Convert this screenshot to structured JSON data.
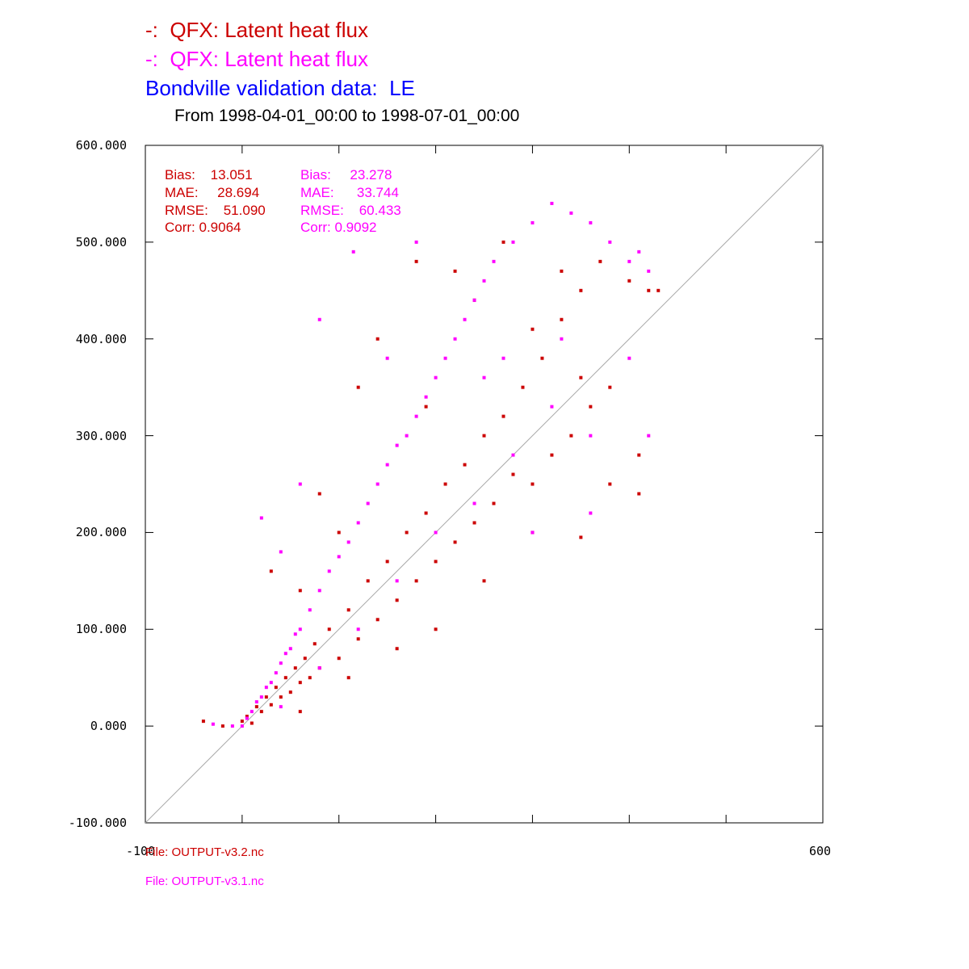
{
  "titles": {
    "line1": "-:  QFX: Latent heat flux",
    "line2": "-:  QFX: Latent heat flux",
    "line3": "Bondville validation data:  LE",
    "line4": "From 1998-04-01_00:00 to 1998-07-01_00:00"
  },
  "colors": {
    "series1": "#cc0000",
    "series2": "#ff00ff",
    "obs": "#0000ff",
    "diag": "#aaaaaa"
  },
  "files": {
    "file1": "File: OUTPUT-v3.2.nc",
    "file2": "File: OUTPUT-v3.1.nc"
  },
  "stats": {
    "s1": {
      "bias": "Bias:    13.051",
      "mae": "MAE:     28.694",
      "rmse": "RMSE:    51.090",
      "corr": "Corr: 0.9064"
    },
    "s2": {
      "bias": "Bias:     23.278",
      "mae": "MAE:      33.744",
      "rmse": "RMSE:    60.433",
      "corr": "Corr: 0.9092"
    }
  },
  "chart_data": {
    "type": "scatter",
    "title": "Bondville validation data:  LE",
    "subtitle": "From 1998-04-01_00:00 to 1998-07-01_00:00",
    "xlim": [
      -100,
      600
    ],
    "ylim": [
      -100,
      600
    ],
    "x_tick_labels": [
      "-100",
      "600"
    ],
    "y_ticks": [
      -100,
      0,
      100,
      200,
      300,
      400,
      500,
      600
    ],
    "y_tick_labels": [
      "-100.000",
      "0.000",
      "100.000",
      "200.000",
      "300.000",
      "400.000",
      "500.000",
      "600.000"
    ],
    "reference_line": "1:1 diagonal",
    "series": [
      {
        "name": "QFX: Latent heat flux (OUTPUT-v3.2.nc)",
        "color": "#cc0000",
        "points": [
          [
            0,
            5
          ],
          [
            5,
            10
          ],
          [
            10,
            3
          ],
          [
            15,
            20
          ],
          [
            20,
            15
          ],
          [
            25,
            30
          ],
          [
            30,
            22
          ],
          [
            35,
            40
          ],
          [
            40,
            30
          ],
          [
            45,
            50
          ],
          [
            50,
            35
          ],
          [
            55,
            60
          ],
          [
            60,
            45
          ],
          [
            65,
            70
          ],
          [
            70,
            50
          ],
          [
            75,
            85
          ],
          [
            80,
            60
          ],
          [
            90,
            100
          ],
          [
            100,
            70
          ],
          [
            110,
            120
          ],
          [
            120,
            90
          ],
          [
            130,
            150
          ],
          [
            140,
            110
          ],
          [
            150,
            170
          ],
          [
            160,
            130
          ],
          [
            170,
            200
          ],
          [
            180,
            150
          ],
          [
            190,
            220
          ],
          [
            200,
            170
          ],
          [
            210,
            250
          ],
          [
            220,
            190
          ],
          [
            230,
            270
          ],
          [
            240,
            210
          ],
          [
            250,
            300
          ],
          [
            260,
            230
          ],
          [
            270,
            320
          ],
          [
            280,
            260
          ],
          [
            290,
            350
          ],
          [
            300,
            250
          ],
          [
            310,
            380
          ],
          [
            320,
            280
          ],
          [
            330,
            420
          ],
          [
            340,
            300
          ],
          [
            350,
            450
          ],
          [
            360,
            330
          ],
          [
            370,
            480
          ],
          [
            380,
            350
          ],
          [
            400,
            460
          ],
          [
            410,
            240
          ],
          [
            430,
            450
          ],
          [
            -40,
            5
          ],
          [
            -20,
            0
          ],
          [
            60,
            15
          ],
          [
            110,
            50
          ],
          [
            160,
            80
          ],
          [
            200,
            100
          ],
          [
            250,
            150
          ],
          [
            300,
            200
          ],
          [
            350,
            195
          ],
          [
            140,
            400
          ],
          [
            220,
            470
          ],
          [
            270,
            500
          ],
          [
            180,
            480
          ],
          [
            120,
            350
          ],
          [
            80,
            240
          ],
          [
            30,
            160
          ],
          [
            60,
            140
          ],
          [
            100,
            200
          ],
          [
            190,
            330
          ],
          [
            240,
            440
          ],
          [
            330,
            470
          ],
          [
            380,
            250
          ],
          [
            410,
            280
          ],
          [
            420,
            450
          ],
          [
            350,
            360
          ],
          [
            300,
            410
          ]
        ]
      },
      {
        "name": "QFX: Latent heat flux (OUTPUT-v3.1.nc)",
        "color": "#ff00ff",
        "points": [
          [
            0,
            0
          ],
          [
            5,
            8
          ],
          [
            10,
            15
          ],
          [
            15,
            25
          ],
          [
            20,
            30
          ],
          [
            25,
            40
          ],
          [
            30,
            45
          ],
          [
            35,
            55
          ],
          [
            40,
            65
          ],
          [
            45,
            75
          ],
          [
            50,
            80
          ],
          [
            55,
            95
          ],
          [
            60,
            100
          ],
          [
            70,
            120
          ],
          [
            80,
            140
          ],
          [
            90,
            160
          ],
          [
            100,
            175
          ],
          [
            110,
            190
          ],
          [
            120,
            210
          ],
          [
            130,
            230
          ],
          [
            140,
            250
          ],
          [
            150,
            270
          ],
          [
            160,
            290
          ],
          [
            170,
            300
          ],
          [
            180,
            320
          ],
          [
            190,
            340
          ],
          [
            200,
            360
          ],
          [
            210,
            380
          ],
          [
            220,
            400
          ],
          [
            230,
            420
          ],
          [
            240,
            440
          ],
          [
            250,
            460
          ],
          [
            260,
            480
          ],
          [
            280,
            500
          ],
          [
            300,
            520
          ],
          [
            320,
            540
          ],
          [
            340,
            530
          ],
          [
            360,
            520
          ],
          [
            380,
            500
          ],
          [
            400,
            480
          ],
          [
            420,
            470
          ],
          [
            -30,
            2
          ],
          [
            -10,
            0
          ],
          [
            40,
            20
          ],
          [
            80,
            60
          ],
          [
            120,
            100
          ],
          [
            160,
            150
          ],
          [
            200,
            200
          ],
          [
            240,
            230
          ],
          [
            280,
            280
          ],
          [
            320,
            330
          ],
          [
            360,
            300
          ],
          [
            400,
            380
          ],
          [
            420,
            300
          ],
          [
            360,
            220
          ],
          [
            300,
            200
          ],
          [
            20,
            215
          ],
          [
            80,
            420
          ],
          [
            115,
            490
          ],
          [
            180,
            500
          ],
          [
            250,
            360
          ],
          [
            150,
            380
          ],
          [
            60,
            250
          ],
          [
            40,
            180
          ],
          [
            270,
            380
          ],
          [
            330,
            400
          ],
          [
            410,
            490
          ]
        ]
      }
    ]
  }
}
